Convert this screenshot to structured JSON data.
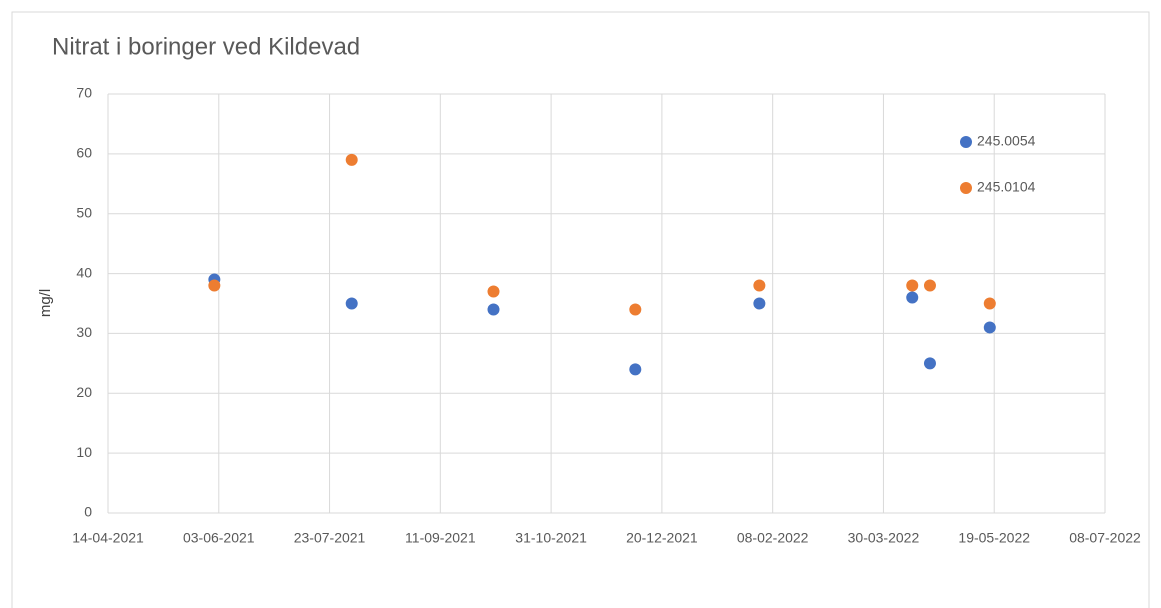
{
  "chart_data": {
    "type": "scatter",
    "title": "Nitrat i boringer ved Kildevad",
    "y_label": "mg/l",
    "x": [
      "01-06-2021",
      "02-08-2021",
      "05-10-2021",
      "08-12-2021",
      "02-02-2022",
      "12-04-2022",
      "20-04-2022",
      "17-05-2022"
    ],
    "series": [
      {
        "name": "245.0054",
        "color": "#4472c4",
        "values": [
          39,
          35,
          34,
          24,
          35,
          36,
          25,
          31
        ]
      },
      {
        "name": "245.0104",
        "color": "#ed7d31",
        "values": [
          38,
          59,
          37,
          34,
          38,
          38,
          38,
          35
        ]
      }
    ],
    "xlim": [
      "14-04-2021",
      "08-07-2022"
    ],
    "xticks": [
      "14-04-2021",
      "03-06-2021",
      "23-07-2021",
      "11-09-2021",
      "31-10-2021",
      "20-12-2021",
      "08-02-2022",
      "30-03-2022",
      "19-05-2022",
      "08-07-2022"
    ],
    "ylim": [
      0,
      70
    ],
    "yticks": [
      0,
      10,
      20,
      30,
      40,
      50,
      60,
      70
    ],
    "grid": true,
    "legend": "top-right"
  }
}
